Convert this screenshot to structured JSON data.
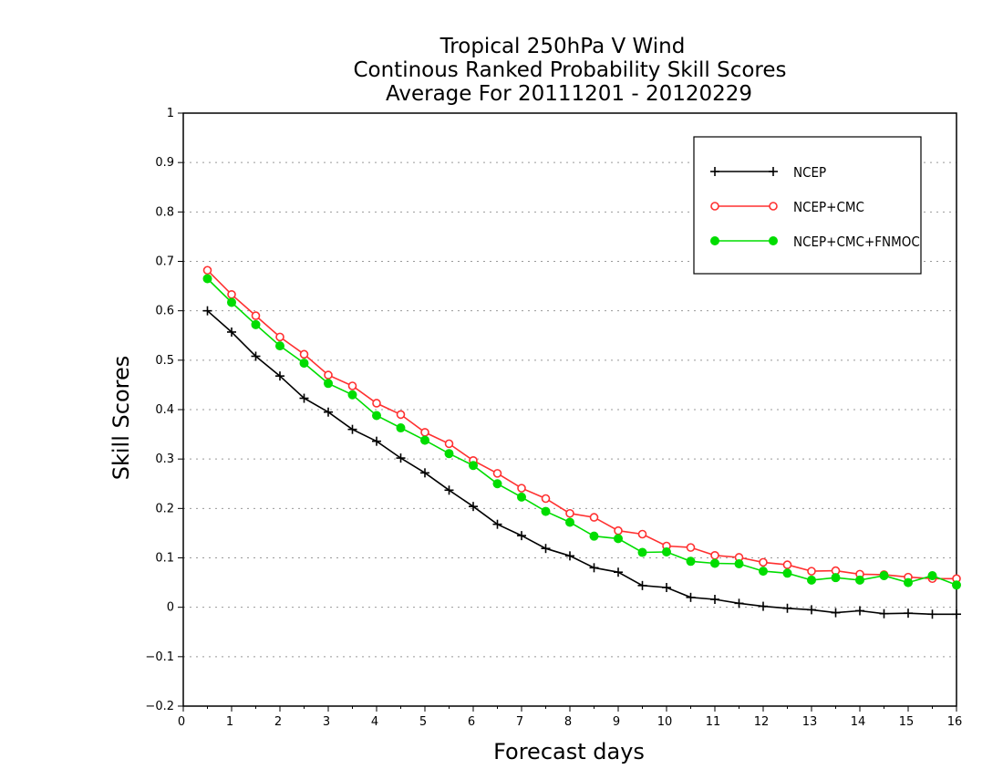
{
  "chart_data": {
    "type": "line",
    "title_lines": [
      "Tropical 250hPa V Wind",
      "Continous Ranked Probability Skill Scores",
      "Average For 20111201 - 20120229"
    ],
    "xlabel": "Forecast days",
    "ylabel": "Skill Scores",
    "xlim": [
      0,
      16
    ],
    "ylim": [
      -0.2,
      1
    ],
    "x_ticks": [
      0,
      1,
      2,
      3,
      4,
      5,
      6,
      7,
      8,
      9,
      10,
      11,
      12,
      13,
      14,
      15,
      16
    ],
    "y_ticks": [
      -0.2,
      -0.1,
      0,
      0.1,
      0.2,
      0.3,
      0.4,
      0.5,
      0.6,
      0.7,
      0.8,
      0.9,
      1
    ],
    "x_tick_labels": [
      "0",
      "1",
      "2",
      "3",
      "4",
      "5",
      "6",
      "7",
      "8",
      "9",
      "10",
      "11",
      "12",
      "13",
      "14",
      "15",
      "16"
    ],
    "y_tick_labels": [
      "−0.2",
      "−0.1",
      "0",
      "0.1",
      "0.2",
      "0.3",
      "0.4",
      "0.5",
      "0.6",
      "0.7",
      "0.8",
      "0.9",
      "1"
    ],
    "grid": "horizontal-dotted",
    "legend_position": "top-right",
    "x": [
      0.5,
      1,
      1.5,
      2,
      2.5,
      3,
      3.5,
      4,
      4.5,
      5,
      5.5,
      6,
      6.5,
      7,
      7.5,
      8,
      8.5,
      9,
      9.5,
      10,
      10.5,
      11,
      11.5,
      12,
      12.5,
      13,
      13.5,
      14,
      14.5,
      15,
      15.5,
      16
    ],
    "series": [
      {
        "name": "NCEP",
        "color": "#000000",
        "marker": "plus",
        "values": [
          0.6,
          0.557,
          0.508,
          0.468,
          0.423,
          0.395,
          0.36,
          0.336,
          0.302,
          0.272,
          0.237,
          0.204,
          0.168,
          0.145,
          0.119,
          0.104,
          0.08,
          0.071,
          0.044,
          0.04,
          0.02,
          0.016,
          0.008,
          0.002,
          -0.002,
          -0.005,
          -0.011,
          -0.007,
          -0.013,
          -0.012,
          -0.014,
          -0.014
        ]
      },
      {
        "name": "NCEP+CMC",
        "color": "#ff3030",
        "marker": "open-circle",
        "values": [
          0.682,
          0.633,
          0.59,
          0.547,
          0.512,
          0.47,
          0.448,
          0.413,
          0.39,
          0.354,
          0.331,
          0.297,
          0.271,
          0.241,
          0.22,
          0.19,
          0.182,
          0.155,
          0.148,
          0.124,
          0.121,
          0.105,
          0.101,
          0.091,
          0.086,
          0.073,
          0.074,
          0.067,
          0.066,
          0.061,
          0.058,
          0.058
        ]
      },
      {
        "name": "NCEP+CMC+FNMOC",
        "color": "#00dd00",
        "marker": "filled-circle",
        "values": [
          0.665,
          0.617,
          0.572,
          0.529,
          0.494,
          0.453,
          0.43,
          0.388,
          0.363,
          0.338,
          0.311,
          0.287,
          0.25,
          0.223,
          0.194,
          0.172,
          0.144,
          0.139,
          0.111,
          0.112,
          0.093,
          0.089,
          0.088,
          0.073,
          0.069,
          0.055,
          0.06,
          0.055,
          0.064,
          0.05,
          0.064,
          0.045
        ]
      }
    ]
  }
}
